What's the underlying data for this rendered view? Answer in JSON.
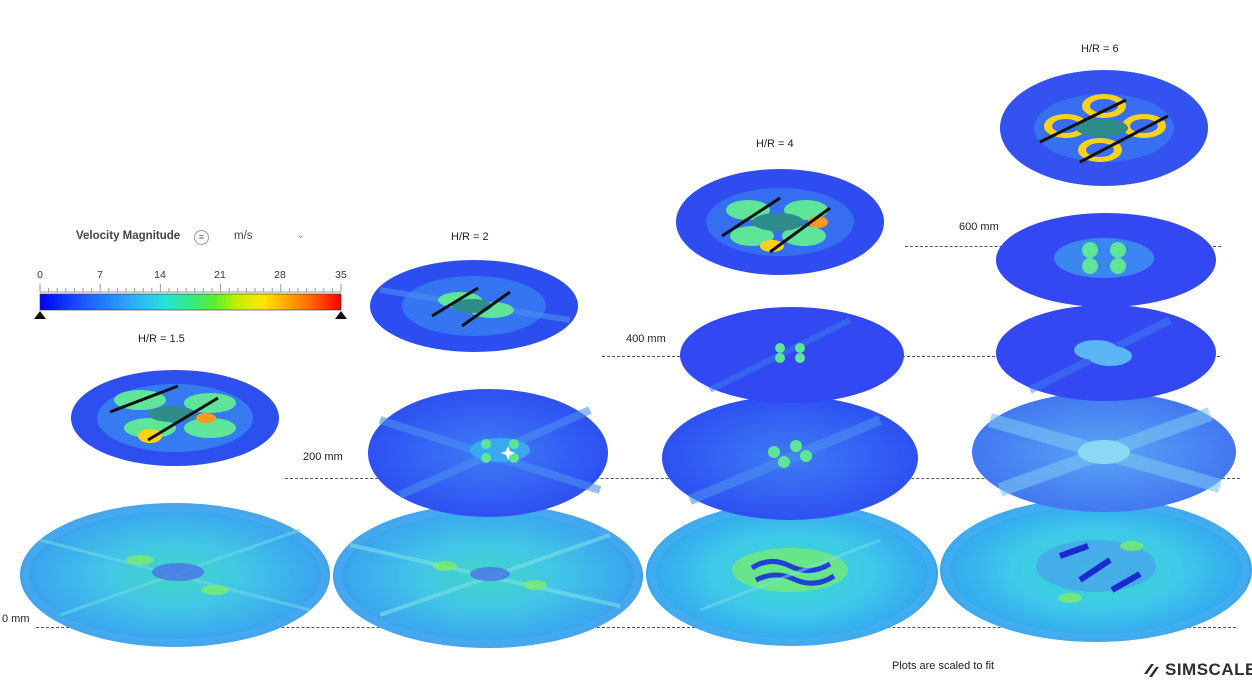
{
  "legend": {
    "title": "Velocity Magnitude",
    "unit": "m/s",
    "ticks": [
      "0",
      "7",
      "14",
      "21",
      "28",
      "35"
    ],
    "colors": [
      "#0000ff",
      "#1d5cff",
      "#2fa8ff",
      "#27e3d6",
      "#36e88a",
      "#59ef2f",
      "#c8f000",
      "#ffe400",
      "#ffaa00",
      "#ff6600",
      "#ff0000"
    ]
  },
  "cases": [
    {
      "label": "H/R = 1.5"
    },
    {
      "label": "H/R = 2"
    },
    {
      "label": "H/R = 4"
    },
    {
      "label": "H/R = 6"
    }
  ],
  "heights": {
    "h0": "0 mm",
    "h200": "200 mm",
    "h400": "400 mm",
    "h600": "600 mm"
  },
  "footer": {
    "note": "Plots are scaled to fit",
    "brand": "SIMSCALE"
  }
}
